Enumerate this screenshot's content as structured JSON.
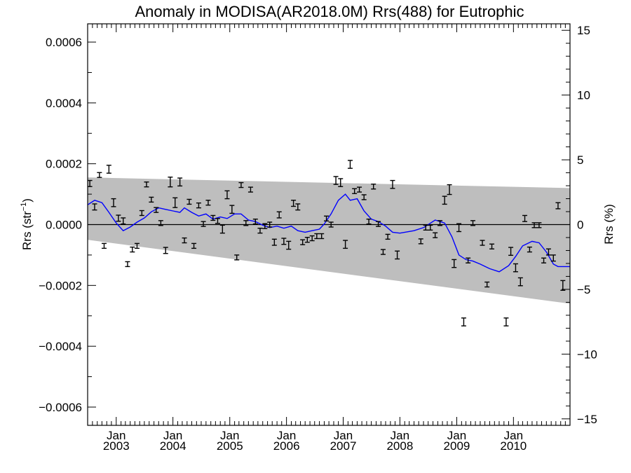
{
  "chart_data": {
    "type": "scatter",
    "title": "Anomaly in MODISA(AR2018.0M) Rrs(488) for Eutrophic",
    "ylabel_left_main": "Rrs (str",
    "ylabel_left_sup": "−1",
    "ylabel_left_end": ")",
    "ylabel_right": "Rrs (%)",
    "xlim": [
      "2002-07-01",
      "2010-12-31"
    ],
    "ylim_left": [
      -0.00066,
      0.00066
    ],
    "ylim_right": [
      -15.5,
      15.5
    ],
    "x_ticks": [
      {
        "date": "2003-01-01",
        "month": "Jan",
        "year": "2003"
      },
      {
        "date": "2004-01-01",
        "month": "Jan",
        "year": "2004"
      },
      {
        "date": "2005-01-01",
        "month": "Jan",
        "year": "2005"
      },
      {
        "date": "2006-01-01",
        "month": "Jan",
        "year": "2006"
      },
      {
        "date": "2007-01-01",
        "month": "Jan",
        "year": "2007"
      },
      {
        "date": "2008-01-01",
        "month": "Jan",
        "year": "2008"
      },
      {
        "date": "2009-01-01",
        "month": "Jan",
        "year": "2009"
      },
      {
        "date": "2010-01-01",
        "month": "Jan",
        "year": "2010"
      }
    ],
    "y_ticks_left": [
      {
        "value": 0.0006,
        "label": "0.0006"
      },
      {
        "value": 0.0004,
        "label": "0.0004"
      },
      {
        "value": 0.0002,
        "label": "0.0002"
      },
      {
        "value": 0.0,
        "label": "0.0000"
      },
      {
        "value": -0.0002,
        "label": "−0.0002"
      },
      {
        "value": -0.0004,
        "label": "−0.0004"
      },
      {
        "value": -0.0006,
        "label": "−0.0006"
      }
    ],
    "y_ticks_right": [
      {
        "value": 15,
        "label": "15"
      },
      {
        "value": 10,
        "label": "10"
      },
      {
        "value": 5,
        "label": "5"
      },
      {
        "value": 0,
        "label": "0"
      },
      {
        "value": -5,
        "label": "−5"
      },
      {
        "value": -10,
        "label": "−10"
      },
      {
        "value": -15,
        "label": "−15"
      }
    ],
    "envelope": {
      "color": "#bebebe",
      "x": [
        "2002-07-01",
        "2010-12-31"
      ],
      "upper": [
        0.000155,
        0.00012
      ],
      "lower": [
        -5e-05,
        -0.00026
      ]
    },
    "zero_line": true,
    "points": [
      {
        "x": "2002-07-15",
        "y": 0.000135,
        "e": 1e-05
      },
      {
        "x": "2002-08-15",
        "y": 5.8e-05,
        "e": 1e-05
      },
      {
        "x": "2002-09-15",
        "y": 0.000163,
        "e": 8e-06
      },
      {
        "x": "2002-10-15",
        "y": -7e-05,
        "e": 8e-06
      },
      {
        "x": "2002-11-15",
        "y": 0.000182,
        "e": 1.3e-05
      },
      {
        "x": "2002-12-15",
        "y": 7.2e-05,
        "e": 1.3e-05
      },
      {
        "x": "2003-01-15",
        "y": 2.1e-05,
        "e": 1e-05
      },
      {
        "x": "2003-02-15",
        "y": 1.2e-05,
        "e": 1e-05
      },
      {
        "x": "2003-03-15",
        "y": -0.00013,
        "e": 8e-06
      },
      {
        "x": "2003-04-15",
        "y": -8.2e-05,
        "e": 8e-06
      },
      {
        "x": "2003-05-15",
        "y": -7e-05,
        "e": 8e-06
      },
      {
        "x": "2003-06-15",
        "y": 3.8e-05,
        "e": 8e-06
      },
      {
        "x": "2003-07-15",
        "y": 0.000132,
        "e": 8e-06
      },
      {
        "x": "2003-08-15",
        "y": 8.2e-05,
        "e": 8e-06
      },
      {
        "x": "2003-09-15",
        "y": 4.8e-05,
        "e": 8e-06
      },
      {
        "x": "2003-10-15",
        "y": 5e-06,
        "e": 8e-06
      },
      {
        "x": "2003-11-15",
        "y": -8.5e-05,
        "e": 1e-05
      },
      {
        "x": "2003-12-15",
        "y": 0.00014,
        "e": 1.6e-05
      },
      {
        "x": "2004-01-15",
        "y": 7.2e-05,
        "e": 1.6e-05
      },
      {
        "x": "2004-02-15",
        "y": 0.00014,
        "e": 1.3e-05
      },
      {
        "x": "2004-03-15",
        "y": -5.2e-05,
        "e": 8e-06
      },
      {
        "x": "2004-04-15",
        "y": 7.5e-05,
        "e": 8e-06
      },
      {
        "x": "2004-05-15",
        "y": -7e-05,
        "e": 8e-06
      },
      {
        "x": "2004-06-15",
        "y": 6.3e-05,
        "e": 8e-06
      },
      {
        "x": "2004-07-15",
        "y": 2e-06,
        "e": 8e-06
      },
      {
        "x": "2004-08-15",
        "y": 7.2e-05,
        "e": 8e-06
      },
      {
        "x": "2004-09-15",
        "y": 2.2e-05,
        "e": 8e-06
      },
      {
        "x": "2004-10-15",
        "y": 1.2e-05,
        "e": 8e-06
      },
      {
        "x": "2004-11-15",
        "y": -1.5e-05,
        "e": 1.3e-05
      },
      {
        "x": "2004-12-15",
        "y": 9.8e-05,
        "e": 1.3e-05
      },
      {
        "x": "2005-01-15",
        "y": 5e-05,
        "e": 1.3e-05
      },
      {
        "x": "2005-02-15",
        "y": -0.000108,
        "e": 8e-06
      },
      {
        "x": "2005-03-15",
        "y": 0.00013,
        "e": 8e-06
      },
      {
        "x": "2005-04-15",
        "y": 5e-06,
        "e": 8e-06
      },
      {
        "x": "2005-05-15",
        "y": 0.000115,
        "e": 8e-06
      },
      {
        "x": "2005-06-15",
        "y": 1e-05,
        "e": 8e-06
      },
      {
        "x": "2005-07-15",
        "y": -2e-05,
        "e": 8e-06
      },
      {
        "x": "2005-08-15",
        "y": -5e-06,
        "e": 8e-06
      },
      {
        "x": "2005-09-15",
        "y": 0.0,
        "e": 8e-06
      },
      {
        "x": "2005-10-15",
        "y": -5.8e-05,
        "e": 1e-05
      },
      {
        "x": "2005-11-15",
        "y": 3.2e-05,
        "e": 1e-05
      },
      {
        "x": "2005-12-15",
        "y": -5.5e-05,
        "e": 1e-05
      },
      {
        "x": "2006-01-15",
        "y": -6.8e-05,
        "e": 1.3e-05
      },
      {
        "x": "2006-02-15",
        "y": 7e-05,
        "e": 1e-05
      },
      {
        "x": "2006-03-15",
        "y": 5.8e-05,
        "e": 1e-05
      },
      {
        "x": "2006-04-15",
        "y": -5.8e-05,
        "e": 8e-06
      },
      {
        "x": "2006-05-15",
        "y": -5e-05,
        "e": 8e-06
      },
      {
        "x": "2006-06-15",
        "y": -4.5e-05,
        "e": 8e-06
      },
      {
        "x": "2006-07-15",
        "y": -3.8e-05,
        "e": 8e-06
      },
      {
        "x": "2006-08-15",
        "y": -3.8e-05,
        "e": 8e-06
      },
      {
        "x": "2006-09-15",
        "y": 2e-05,
        "e": 8e-06
      },
      {
        "x": "2006-10-15",
        "y": 0.0,
        "e": 8e-06
      },
      {
        "x": "2006-11-15",
        "y": 0.000145,
        "e": 1.3e-05
      },
      {
        "x": "2006-12-15",
        "y": 0.000138,
        "e": 1.3e-05
      },
      {
        "x": "2007-01-15",
        "y": -6.5e-05,
        "e": 1.3e-05
      },
      {
        "x": "2007-02-15",
        "y": 0.000198,
        "e": 1.3e-05
      },
      {
        "x": "2007-03-15",
        "y": 0.00011,
        "e": 8e-06
      },
      {
        "x": "2007-04-15",
        "y": 0.000115,
        "e": 8e-06
      },
      {
        "x": "2007-05-15",
        "y": 9e-05,
        "e": 8e-06
      },
      {
        "x": "2007-06-15",
        "y": 1e-05,
        "e": 8e-06
      },
      {
        "x": "2007-07-15",
        "y": 0.000125,
        "e": 8e-06
      },
      {
        "x": "2007-08-15",
        "y": 2e-06,
        "e": 8e-06
      },
      {
        "x": "2007-09-15",
        "y": -9e-05,
        "e": 8e-06
      },
      {
        "x": "2007-10-15",
        "y": -4e-05,
        "e": 8e-06
      },
      {
        "x": "2007-11-15",
        "y": 0.000132,
        "e": 1.3e-05
      },
      {
        "x": "2007-12-15",
        "y": -0.0001,
        "e": 1.3e-05
      },
      {
        "x": "2008-05-15",
        "y": -5.5e-05,
        "e": 8e-06
      },
      {
        "x": "2008-06-15",
        "y": -1e-05,
        "e": 8e-06
      },
      {
        "x": "2008-07-15",
        "y": -1e-05,
        "e": 8e-06
      },
      {
        "x": "2008-08-15",
        "y": -3.5e-05,
        "e": 8e-06
      },
      {
        "x": "2008-09-15",
        "y": 5e-06,
        "e": 8e-06
      },
      {
        "x": "2008-10-15",
        "y": 8e-05,
        "e": 1.3e-05
      },
      {
        "x": "2008-11-15",
        "y": 0.000115,
        "e": 1.6e-05
      },
      {
        "x": "2008-12-15",
        "y": -0.000128,
        "e": 1.3e-05
      },
      {
        "x": "2009-01-15",
        "y": -1e-05,
        "e": 1.3e-05
      },
      {
        "x": "2009-02-15",
        "y": -0.00032,
        "e": 1.3e-05
      },
      {
        "x": "2009-03-15",
        "y": -0.000118,
        "e": 8e-06
      },
      {
        "x": "2009-04-15",
        "y": 5e-06,
        "e": 8e-06
      },
      {
        "x": "2009-06-15",
        "y": -6e-05,
        "e": 8e-06
      },
      {
        "x": "2009-07-15",
        "y": -0.000197,
        "e": 8e-06
      },
      {
        "x": "2009-08-15",
        "y": -7.2e-05,
        "e": 8e-06
      },
      {
        "x": "2009-11-15",
        "y": -0.00032,
        "e": 1.3e-05
      },
      {
        "x": "2009-12-15",
        "y": -8.8e-05,
        "e": 1.3e-05
      },
      {
        "x": "2010-01-15",
        "y": -0.000142,
        "e": 1.3e-05
      },
      {
        "x": "2010-02-15",
        "y": -0.000188,
        "e": 1.3e-05
      },
      {
        "x": "2010-03-15",
        "y": 2e-05,
        "e": 1e-05
      },
      {
        "x": "2010-04-15",
        "y": -8.2e-05,
        "e": 8e-06
      },
      {
        "x": "2010-05-15",
        "y": -2e-06,
        "e": 8e-06
      },
      {
        "x": "2010-06-15",
        "y": -2e-06,
        "e": 8e-06
      },
      {
        "x": "2010-07-15",
        "y": -0.000118,
        "e": 8e-06
      },
      {
        "x": "2010-08-15",
        "y": -9e-05,
        "e": 1e-05
      },
      {
        "x": "2010-09-15",
        "y": -0.00011,
        "e": 1e-05
      },
      {
        "x": "2010-10-15",
        "y": 6.2e-05,
        "e": 1e-05
      },
      {
        "x": "2010-11-15",
        "y": -0.0002,
        "e": 1.6e-05
      }
    ],
    "smoothed_line": {
      "color": "#0000ff",
      "points": [
        {
          "x": "2002-07-01",
          "y": 6.5e-05
        },
        {
          "x": "2002-08-15",
          "y": 8e-05
        },
        {
          "x": "2002-10-01",
          "y": 7.2e-05
        },
        {
          "x": "2002-11-15",
          "y": 4e-05
        },
        {
          "x": "2003-01-01",
          "y": 5e-06
        },
        {
          "x": "2003-02-15",
          "y": -2e-05
        },
        {
          "x": "2003-04-01",
          "y": -8e-06
        },
        {
          "x": "2003-05-15",
          "y": 8e-06
        },
        {
          "x": "2003-07-01",
          "y": 2.2e-05
        },
        {
          "x": "2003-08-15",
          "y": 4.2e-05
        },
        {
          "x": "2003-10-01",
          "y": 5.5e-05
        },
        {
          "x": "2003-11-15",
          "y": 5e-05
        },
        {
          "x": "2004-01-01",
          "y": 4.5e-05
        },
        {
          "x": "2004-02-15",
          "y": 4e-05
        },
        {
          "x": "2004-03-15",
          "y": 5.5e-05
        },
        {
          "x": "2004-05-01",
          "y": 4e-05
        },
        {
          "x": "2004-06-15",
          "y": 2.8e-05
        },
        {
          "x": "2004-08-01",
          "y": 3.5e-05
        },
        {
          "x": "2004-09-15",
          "y": 1.8e-05
        },
        {
          "x": "2004-11-01",
          "y": 2.5e-05
        },
        {
          "x": "2004-12-15",
          "y": 2e-05
        },
        {
          "x": "2005-02-01",
          "y": 3.5e-05
        },
        {
          "x": "2005-03-15",
          "y": 3.5e-05
        },
        {
          "x": "2005-05-01",
          "y": 1.5e-05
        },
        {
          "x": "2005-06-15",
          "y": 1e-05
        },
        {
          "x": "2005-08-01",
          "y": -2e-06
        },
        {
          "x": "2005-09-15",
          "y": -1e-05
        },
        {
          "x": "2005-11-01",
          "y": -5e-06
        },
        {
          "x": "2005-12-15",
          "y": -1.2e-05
        },
        {
          "x": "2006-02-01",
          "y": -5e-06
        },
        {
          "x": "2006-03-15",
          "y": -2e-05
        },
        {
          "x": "2006-05-01",
          "y": -2.5e-05
        },
        {
          "x": "2006-06-15",
          "y": -2e-05
        },
        {
          "x": "2006-08-01",
          "y": -1.5e-05
        },
        {
          "x": "2006-09-01",
          "y": 2e-06
        },
        {
          "x": "2006-10-15",
          "y": 3.5e-05
        },
        {
          "x": "2006-12-01",
          "y": 8e-05
        },
        {
          "x": "2007-01-15",
          "y": 0.0001
        },
        {
          "x": "2007-02-15",
          "y": 8e-05
        },
        {
          "x": "2007-04-01",
          "y": 8.5e-05
        },
        {
          "x": "2007-05-15",
          "y": 4.5e-05
        },
        {
          "x": "2007-07-01",
          "y": 1.8e-05
        },
        {
          "x": "2007-08-15",
          "y": 1e-05
        },
        {
          "x": "2007-10-01",
          "y": -5e-06
        },
        {
          "x": "2007-11-15",
          "y": -2.5e-05
        },
        {
          "x": "2008-01-01",
          "y": -2.8e-05
        },
        {
          "x": "2008-04-01",
          "y": -2e-05
        },
        {
          "x": "2008-06-01",
          "y": -1e-05
        },
        {
          "x": "2008-08-15",
          "y": 1.5e-05
        },
        {
          "x": "2008-10-15",
          "y": 5e-06
        },
        {
          "x": "2008-12-01",
          "y": -4e-05
        },
        {
          "x": "2009-01-15",
          "y": -0.0001
        },
        {
          "x": "2009-03-01",
          "y": -0.000115
        },
        {
          "x": "2009-04-15",
          "y": -0.00012
        },
        {
          "x": "2009-06-01",
          "y": -0.00013
        },
        {
          "x": "2009-08-01",
          "y": -0.000145
        },
        {
          "x": "2009-10-01",
          "y": -0.000155
        },
        {
          "x": "2009-12-01",
          "y": -0.000135
        },
        {
          "x": "2010-01-15",
          "y": -0.000105
        },
        {
          "x": "2010-03-01",
          "y": -7e-05
        },
        {
          "x": "2010-05-01",
          "y": -5.5e-05
        },
        {
          "x": "2010-06-15",
          "y": -6e-05
        },
        {
          "x": "2010-08-01",
          "y": -9e-05
        },
        {
          "x": "2010-09-15",
          "y": -0.00013
        },
        {
          "x": "2010-10-15",
          "y": -0.000138
        },
        {
          "x": "2010-12-31",
          "y": -0.000138
        }
      ]
    },
    "grid": false,
    "legend": "none"
  }
}
